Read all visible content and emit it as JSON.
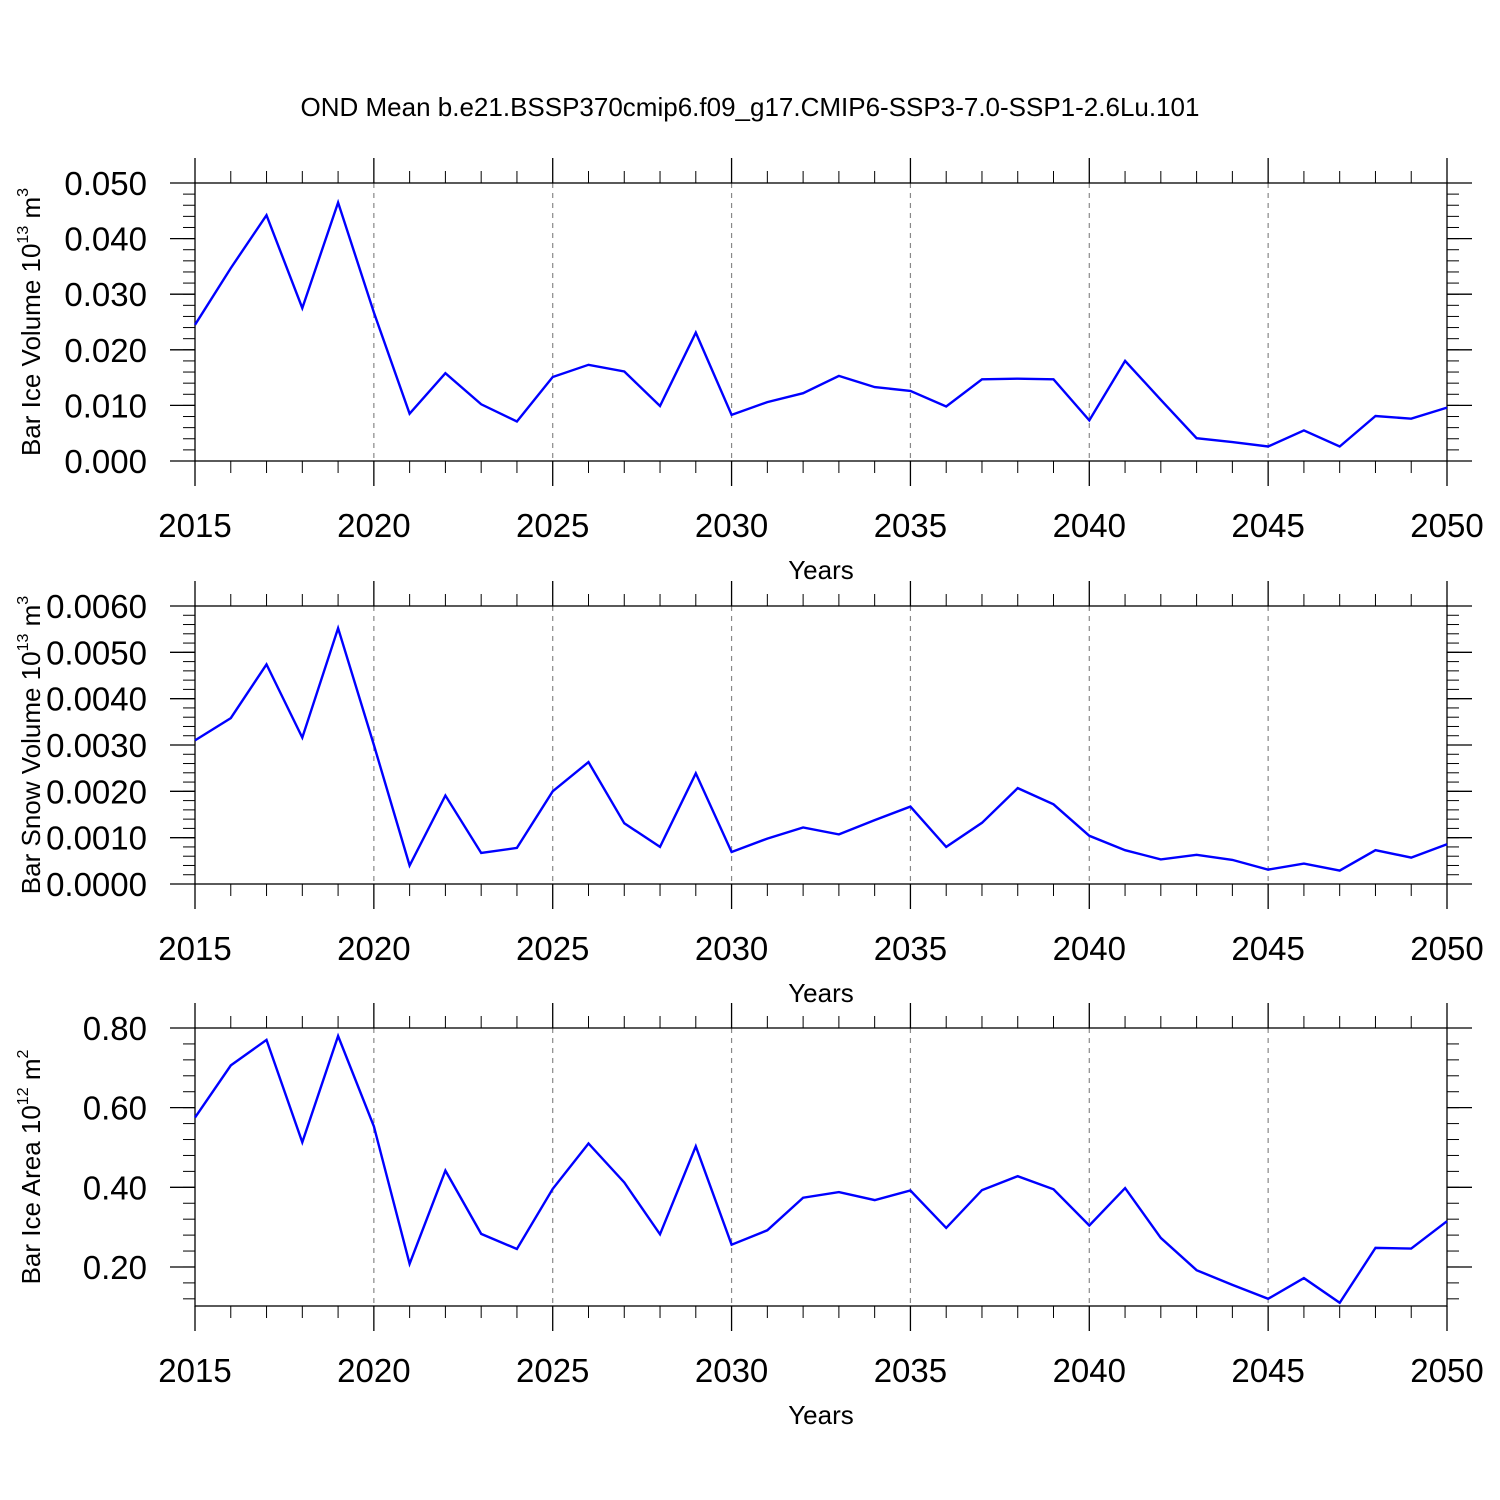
{
  "title": "OND Mean b.e21.BSSP370cmip6.f09_g17.CMIP6-SSP3-7.0-SSP1-2.6Lu.101",
  "colors": {
    "line": "#0000ff",
    "axis": "#000000",
    "grid": "#888888"
  },
  "chart_data": [
    {
      "type": "line",
      "xlabel": "Years",
      "ylabel": {
        "text": "Bar Ice Volume 10",
        "exponent": "13",
        "unit": " m",
        "unit_exponent": "3"
      },
      "xlim": [
        2015,
        2050
      ],
      "ylim": [
        0.0,
        0.05
      ],
      "x_ticks": [
        2015,
        2020,
        2025,
        2030,
        2035,
        2040,
        2045,
        2050
      ],
      "y_ticks": [
        "0.000",
        "0.010",
        "0.020",
        "0.030",
        "0.040",
        "0.050"
      ],
      "grid": "dashed vertical at major x ticks",
      "x": [
        2015,
        2016,
        2017,
        2018,
        2019,
        2020,
        2021,
        2022,
        2023,
        2024,
        2025,
        2026,
        2027,
        2028,
        2029,
        2030,
        2031,
        2032,
        2033,
        2034,
        2035,
        2036,
        2037,
        2038,
        2039,
        2040,
        2041,
        2042,
        2043,
        2044,
        2045,
        2046,
        2047,
        2048,
        2049,
        2050
      ],
      "values": [
        0.0245,
        0.0347,
        0.0442,
        0.0275,
        0.0465,
        0.0267,
        0.0085,
        0.0158,
        0.0102,
        0.0071,
        0.0151,
        0.0173,
        0.0161,
        0.0099,
        0.0231,
        0.0083,
        0.0106,
        0.0122,
        0.0153,
        0.0133,
        0.0126,
        0.0098,
        0.0147,
        0.0148,
        0.0147,
        0.0073,
        0.018,
        0.011,
        0.0041,
        0.0034,
        0.0026,
        0.0055,
        0.0026,
        0.0081,
        0.0076,
        0.0096
      ]
    },
    {
      "type": "line",
      "xlabel": "Years",
      "ylabel": {
        "text": "Bar Snow Volume 10",
        "exponent": "13",
        "unit": " m",
        "unit_exponent": "3"
      },
      "xlim": [
        2015,
        2050
      ],
      "ylim": [
        0.0,
        0.006
      ],
      "x_ticks": [
        2015,
        2020,
        2025,
        2030,
        2035,
        2040,
        2045,
        2050
      ],
      "y_ticks": [
        "0.0000",
        "0.0010",
        "0.0020",
        "0.0030",
        "0.0040",
        "0.0050",
        "0.0060"
      ],
      "grid": "dashed vertical at major x ticks",
      "x": [
        2015,
        2016,
        2017,
        2018,
        2019,
        2020,
        2021,
        2022,
        2023,
        2024,
        2025,
        2026,
        2027,
        2028,
        2029,
        2030,
        2031,
        2032,
        2033,
        2034,
        2035,
        2036,
        2037,
        2038,
        2039,
        2040,
        2041,
        2042,
        2043,
        2044,
        2045,
        2046,
        2047,
        2048,
        2049,
        2050
      ],
      "values": [
        0.0031,
        0.00358,
        0.00474,
        0.00316,
        0.00552,
        0.003,
        0.0004,
        0.00191,
        0.00067,
        0.00078,
        0.002,
        0.00263,
        0.00131,
        0.0008,
        0.00239,
        0.00069,
        0.00098,
        0.00122,
        0.00107,
        0.00138,
        0.00167,
        0.0008,
        0.00132,
        0.00207,
        0.00172,
        0.00104,
        0.00073,
        0.00053,
        0.00063,
        0.00052,
        0.00031,
        0.00044,
        0.00029,
        0.00073,
        0.00057,
        0.00086
      ]
    },
    {
      "type": "line",
      "xlabel": "Years",
      "ylabel": {
        "text": "Bar Ice Area 10",
        "exponent": "12",
        "unit": " m",
        "unit_exponent": "2"
      },
      "xlim": [
        2015,
        2050
      ],
      "ylim": [
        0.102,
        0.8
      ],
      "x_ticks": [
        2015,
        2020,
        2025,
        2030,
        2035,
        2040,
        2045,
        2050
      ],
      "y_ticks": [
        "0.20",
        "0.40",
        "0.60",
        "0.80"
      ],
      "grid": "dashed vertical at major x ticks",
      "x": [
        2015,
        2016,
        2017,
        2018,
        2019,
        2020,
        2021,
        2022,
        2023,
        2024,
        2025,
        2026,
        2027,
        2028,
        2029,
        2030,
        2031,
        2032,
        2033,
        2034,
        2035,
        2036,
        2037,
        2038,
        2039,
        2040,
        2041,
        2042,
        2043,
        2044,
        2045,
        2046,
        2047,
        2048,
        2049,
        2050
      ],
      "values": [
        0.575,
        0.706,
        0.77,
        0.513,
        0.78,
        0.553,
        0.208,
        0.442,
        0.283,
        0.245,
        0.396,
        0.51,
        0.412,
        0.282,
        0.503,
        0.256,
        0.292,
        0.374,
        0.388,
        0.368,
        0.392,
        0.298,
        0.393,
        0.428,
        0.395,
        0.304,
        0.398,
        0.273,
        0.192,
        0.155,
        0.12,
        0.172,
        0.11,
        0.248,
        0.246,
        0.315
      ]
    }
  ]
}
